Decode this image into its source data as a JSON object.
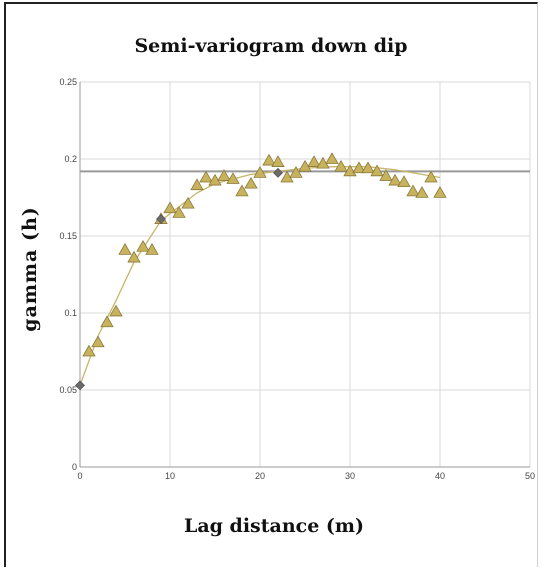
{
  "chart_data": {
    "type": "scatter",
    "title": "Semi-variogram down dip",
    "xlabel": "Lag distance (m)",
    "ylabel": "gamma (h)",
    "xlim": [
      0,
      50
    ],
    "ylim": [
      0,
      0.25
    ],
    "xticks": [
      "0",
      "10",
      "20",
      "30",
      "40",
      "50"
    ],
    "yticks": [
      "0",
      "0.05",
      "0.1",
      "0.15",
      "0.2",
      "0.25"
    ],
    "grid": true,
    "reference_line": {
      "y": 0.192
    },
    "colors": {
      "marker_fill": "#c7b25e",
      "marker_stroke": "#8a7a38",
      "model_line": "#c8b46a",
      "model_point": "#6b6b6b",
      "reference_line": "#999999",
      "grid": "#d9d9d9"
    },
    "series": [
      {
        "marker": "triangle",
        "x": [
          1,
          2,
          3,
          4,
          5,
          6,
          7,
          8,
          9,
          10,
          11,
          12,
          13,
          14,
          15,
          16,
          17,
          18,
          19,
          20,
          21,
          22,
          23,
          24,
          25,
          26,
          27,
          28,
          29,
          30,
          31,
          32,
          33,
          34,
          35,
          36,
          37,
          38,
          39,
          40
        ],
        "y": [
          0.075,
          0.081,
          0.094,
          0.101,
          0.141,
          0.136,
          0.143,
          0.141,
          0.161,
          0.168,
          0.165,
          0.171,
          0.183,
          0.188,
          0.186,
          0.189,
          0.187,
          0.179,
          0.184,
          0.191,
          0.199,
          0.198,
          0.188,
          0.191,
          0.195,
          0.198,
          0.197,
          0.2,
          0.195,
          0.192,
          0.194,
          0.194,
          0.192,
          0.189,
          0.186,
          0.185,
          0.179,
          0.178,
          0.188,
          0.178
        ]
      },
      {
        "marker": "line",
        "x": [
          0,
          2,
          4,
          6,
          9,
          11,
          13,
          15,
          17,
          19,
          22,
          25,
          28,
          30,
          32,
          35,
          38,
          40
        ],
        "y": [
          0.053,
          0.085,
          0.108,
          0.133,
          0.16,
          0.169,
          0.178,
          0.184,
          0.187,
          0.19,
          0.192,
          0.194,
          0.195,
          0.195,
          0.195,
          0.193,
          0.19,
          0.188
        ]
      },
      {
        "marker": "diamond",
        "x": [
          0,
          9,
          22
        ],
        "y": [
          0.053,
          0.161,
          0.191
        ]
      }
    ]
  }
}
